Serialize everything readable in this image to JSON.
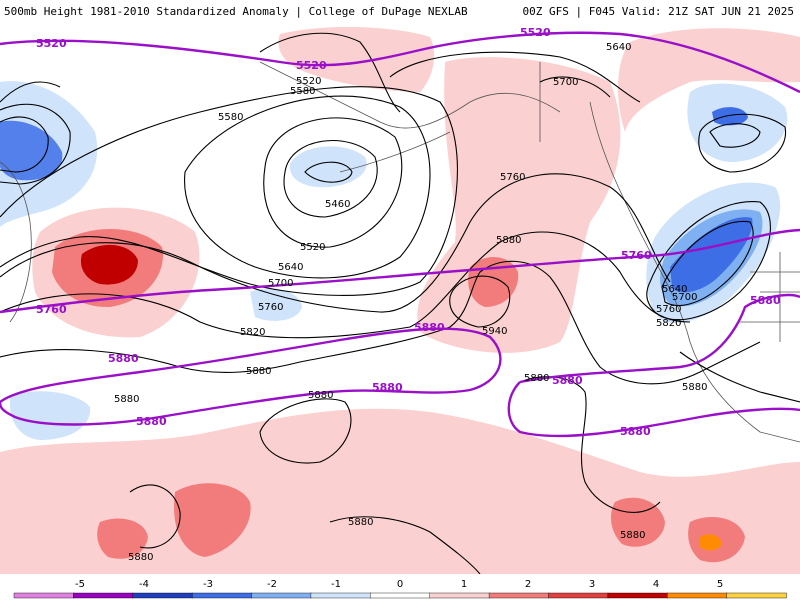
{
  "header": {
    "title_left": "500mb Height 1981-2010 Standardized Anomaly | College of DuPage NEXLAB",
    "title_right": "00Z GFS | F045 Valid: 21Z SAT JUN 21 2025"
  },
  "colors": {
    "purple_contour": "#9a10c8",
    "neg1": "#cfe3fb",
    "neg2": "#7fb0f2",
    "neg3": "#3d6ee6",
    "pos1": "#fbd0d0",
    "pos2": "#f27c7c",
    "pos3": "#c00000"
  },
  "map": {
    "black_contour_labels": [
      "5520",
      "5580",
      "5580",
      "5460",
      "5520",
      "5640",
      "5700",
      "5760",
      "5820",
      "5880",
      "5640",
      "5700",
      "5760",
      "5880",
      "5940",
      "5640",
      "5700",
      "5760",
      "5820",
      "5880",
      "5880",
      "5880",
      "5880",
      "5880",
      "5880",
      "5880"
    ],
    "purple_contour_labels": [
      "5520",
      "5520",
      "5520",
      "5760",
      "5760",
      "5880",
      "5880",
      "5880",
      "5880",
      "5880",
      "5880",
      "5880"
    ]
  },
  "colorbar": {
    "ticks": [
      "-5",
      "-4",
      "-3",
      "-2",
      "-1",
      "0",
      "1",
      "2",
      "3",
      "4",
      "5"
    ],
    "colors": [
      "#e080e0",
      "#9a00c0",
      "#1f3fbf",
      "#3d6ee6",
      "#7fb0f2",
      "#cfe3fb",
      "#ffffff",
      "#fbd0d0",
      "#f27c7c",
      "#e04040",
      "#c00000",
      "#ff8c00",
      "#ffd040"
    ]
  }
}
